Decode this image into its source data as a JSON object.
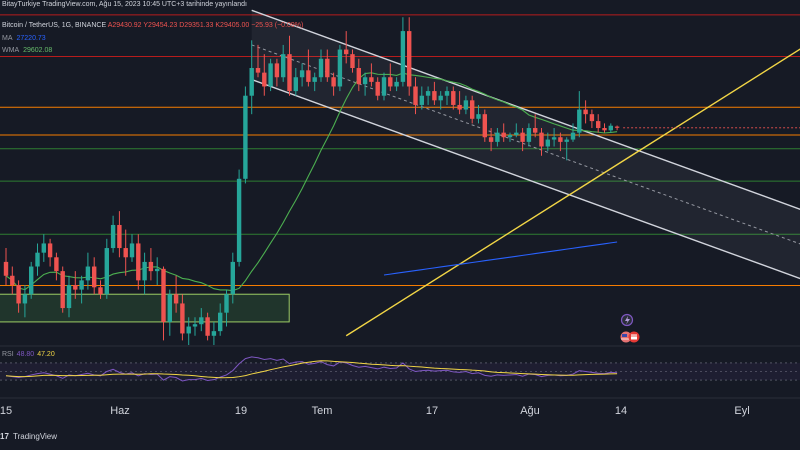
{
  "header": {
    "publish_line": "BitayTurkiye TradingView.com, Ağu 15, 2023 10:45 UTC+3 tarihinde yayınlandı",
    "symbol": "Bitcoin / TetherUS, 1G, BINANCE",
    "ohlc": "A29430.92  Y29454.23  D29351.33  K29405.00  −25.93 (−0.09%)",
    "ma_label": "MA",
    "ma_value": "27220.73",
    "wma_label": "WMA",
    "wma_value": "29602.08",
    "rsi_label": "RSI",
    "rsi_value1": "48.80",
    "rsi_value2": "47.20"
  },
  "footer": {
    "logo": "17",
    "brand": "TradingView"
  },
  "colors": {
    "background": "#161a25",
    "bull": "#26a69a",
    "bear": "#ef5350",
    "ma": "#2962ff",
    "wma": "#4caf50",
    "rsi": "#7e57c2",
    "rsi_ma": "#f2d646",
    "trendline": "#f2d646",
    "channel": "#d1d4dc",
    "resistance_red": "#b71c1c",
    "support_orange": "#f57c00",
    "support_green": "#2e7d32"
  },
  "icons": [
    "flash-event-icon",
    "us-flag-event-icon",
    "calendar-event-icon"
  ],
  "chart_data": {
    "type": "candlestick",
    "symbol": "Bitcoin / TetherUS",
    "interval": "1G",
    "exchange": "BINANCE",
    "x_tick_labels": [
      "15",
      "Haz",
      "19",
      "Tem",
      "17",
      "Ağu",
      "14",
      "Eyl"
    ],
    "y_range": [
      24700,
      32000
    ],
    "indicators": [
      "MA",
      "WMA",
      "RSI"
    ],
    "last_candle": {
      "open": 29430.92,
      "high": 29454.23,
      "low": 29351.33,
      "close": 29405.0,
      "change": -25.93,
      "change_pct": -0.09
    },
    "candles": [
      [
        26500,
        26800,
        26000,
        26200
      ],
      [
        26200,
        26400,
        25800,
        26000
      ],
      [
        26000,
        26100,
        25400,
        25600
      ],
      [
        25600,
        26000,
        25300,
        25800
      ],
      [
        25800,
        26500,
        25700,
        26400
      ],
      [
        26400,
        26900,
        26200,
        26700
      ],
      [
        26700,
        27100,
        26500,
        26900
      ],
      [
        26900,
        27000,
        26400,
        26600
      ],
      [
        26600,
        26700,
        26100,
        26300
      ],
      [
        26300,
        26400,
        25400,
        25500
      ],
      [
        25500,
        26200,
        25300,
        26000
      ],
      [
        26000,
        26300,
        25700,
        25900
      ],
      [
        25900,
        26200,
        25600,
        26100
      ],
      [
        26100,
        26700,
        25900,
        26400
      ],
      [
        26400,
        26600,
        25800,
        25950
      ],
      [
        25950,
        26100,
        25700,
        25800
      ],
      [
        25800,
        27000,
        25700,
        26800
      ],
      [
        26800,
        27500,
        26700,
        27300
      ],
      [
        27300,
        27600,
        26600,
        26800
      ],
      [
        26800,
        27200,
        26200,
        26600
      ],
      [
        26600,
        27100,
        26500,
        26900
      ],
      [
        26900,
        27100,
        25900,
        26100
      ],
      [
        26100,
        26700,
        25800,
        26500
      ],
      [
        26500,
        26800,
        26100,
        26300
      ],
      [
        26300,
        26600,
        26000,
        26350
      ],
      [
        26350,
        26400,
        24800,
        25200
      ],
      [
        25200,
        25900,
        24900,
        25800
      ],
      [
        25800,
        26200,
        25400,
        25600
      ],
      [
        25600,
        25800,
        24800,
        24950
      ],
      [
        24950,
        25300,
        24700,
        25100
      ],
      [
        25100,
        25300,
        24900,
        25150
      ],
      [
        25150,
        25500,
        25000,
        25300
      ],
      [
        25300,
        25400,
        24800,
        24900
      ],
      [
        24900,
        25200,
        24700,
        25000
      ],
      [
        25000,
        25600,
        24900,
        25400
      ],
      [
        25400,
        25900,
        25100,
        25800
      ],
      [
        25800,
        26700,
        25600,
        26500
      ],
      [
        26500,
        28500,
        26400,
        28300
      ],
      [
        28300,
        30300,
        28200,
        30100
      ],
      [
        30100,
        31300,
        29700,
        30700
      ],
      [
        30700,
        31200,
        30500,
        30600
      ],
      [
        30600,
        31000,
        30100,
        30300
      ],
      [
        30300,
        30900,
        30200,
        30800
      ],
      [
        30800,
        30900,
        30300,
        30500
      ],
      [
        30500,
        31200,
        30400,
        31000
      ],
      [
        31000,
        31400,
        30100,
        30200
      ],
      [
        30200,
        30700,
        30100,
        30500
      ],
      [
        30500,
        30800,
        30300,
        30650
      ],
      [
        30650,
        31100,
        30300,
        30400
      ],
      [
        30400,
        30600,
        30200,
        30500
      ],
      [
        30500,
        31100,
        30400,
        30900
      ],
      [
        30900,
        31100,
        30400,
        30500
      ],
      [
        30500,
        30600,
        30100,
        30300
      ],
      [
        30300,
        31200,
        30200,
        31100
      ],
      [
        31100,
        31500,
        30800,
        31000
      ],
      [
        31000,
        31100,
        30600,
        30700
      ],
      [
        30700,
        30900,
        30200,
        30350
      ],
      [
        30350,
        30600,
        30100,
        30500
      ],
      [
        30500,
        30800,
        30300,
        30400
      ],
      [
        30400,
        30500,
        30000,
        30100
      ],
      [
        30100,
        30600,
        30000,
        30500
      ],
      [
        30500,
        30800,
        30200,
        30300
      ],
      [
        30300,
        30500,
        30200,
        30400
      ],
      [
        30400,
        31800,
        30300,
        31500
      ],
      [
        31500,
        31800,
        30100,
        30300
      ],
      [
        30300,
        30500,
        29700,
        29900
      ],
      [
        29900,
        30300,
        29800,
        30100
      ],
      [
        30100,
        30300,
        29900,
        30200
      ],
      [
        30200,
        30400,
        29900,
        30000
      ],
      [
        30000,
        30200,
        29800,
        30100
      ],
      [
        30100,
        30300,
        29900,
        30200
      ],
      [
        30200,
        30300,
        29800,
        29900
      ],
      [
        29900,
        30200,
        29700,
        29800
      ],
      [
        29800,
        30100,
        29700,
        30000
      ],
      [
        30000,
        30100,
        29500,
        29600
      ],
      [
        29600,
        29900,
        29500,
        29700
      ],
      [
        29700,
        29800,
        29100,
        29200
      ],
      [
        29200,
        29400,
        28900,
        29100
      ],
      [
        29100,
        29400,
        29000,
        29300
      ],
      [
        29300,
        29500,
        29100,
        29200
      ],
      [
        29200,
        29300,
        29100,
        29250
      ],
      [
        29250,
        29500,
        29200,
        29300
      ],
      [
        29300,
        29400,
        28900,
        29100
      ],
      [
        29100,
        29500,
        29000,
        29400
      ],
      [
        29400,
        29700,
        29200,
        29300
      ],
      [
        29300,
        29400,
        28800,
        29000
      ],
      [
        29000,
        29300,
        28900,
        29150
      ],
      [
        29150,
        29400,
        29000,
        29200
      ],
      [
        29200,
        29300,
        28900,
        29100
      ],
      [
        29100,
        29200,
        28700,
        29150
      ],
      [
        29150,
        29500,
        29100,
        29300
      ],
      [
        29300,
        30200,
        29200,
        29800
      ],
      [
        29800,
        30000,
        29500,
        29700
      ],
      [
        29700,
        29800,
        29400,
        29550
      ],
      [
        29550,
        29700,
        29300,
        29400
      ],
      [
        29400,
        29500,
        29300,
        29350
      ],
      [
        29350,
        29500,
        29300,
        29450
      ],
      [
        29430.92,
        29454.23,
        29351.33,
        29405.0
      ]
    ],
    "horizontal_levels": [
      {
        "price": 31850,
        "kind": "resistance",
        "color": "#b71c1c"
      },
      {
        "price": 30950,
        "kind": "resistance",
        "color": "#b71c1c"
      },
      {
        "price": 29850,
        "kind": "level",
        "color": "#f57c00"
      },
      {
        "price": 29250,
        "kind": "level",
        "color": "#f57c00"
      },
      {
        "price": 28950,
        "kind": "level",
        "color": "#2e7d32"
      },
      {
        "price": 28250,
        "kind": "support",
        "color": "#2e7d32"
      },
      {
        "price": 27100,
        "kind": "support",
        "color": "#2e7d32"
      },
      {
        "price": 25990,
        "kind": "support",
        "color": "#f57c00"
      }
    ],
    "support_zone": {
      "from_index": 0,
      "to_index": 44,
      "price_low": 25200,
      "price_high": 25800
    },
    "rsi": {
      "label": "RSI",
      "value": 48.8,
      "ma_value": 47.2,
      "range": [
        0,
        100
      ],
      "values": [
        40,
        38,
        36,
        38,
        42,
        45,
        47,
        44,
        40,
        34,
        42,
        40,
        43,
        46,
        42,
        40,
        50,
        55,
        48,
        44,
        47,
        40,
        45,
        43,
        44,
        30,
        38,
        36,
        28,
        31,
        31,
        34,
        29,
        31,
        37,
        42,
        52,
        68,
        80,
        84,
        82,
        78,
        80,
        76,
        79,
        68,
        72,
        73,
        67,
        69,
        73,
        66,
        63,
        72,
        70,
        64,
        60,
        62,
        59,
        56,
        60,
        57,
        58,
        70,
        56,
        50,
        52,
        53,
        51,
        52,
        53,
        49,
        48,
        50,
        45,
        47,
        41,
        39,
        42,
        41,
        42,
        43,
        39,
        44,
        43,
        38,
        41,
        42,
        40,
        41,
        44,
        52,
        50,
        48,
        46,
        45,
        48,
        47
      ]
    }
  }
}
